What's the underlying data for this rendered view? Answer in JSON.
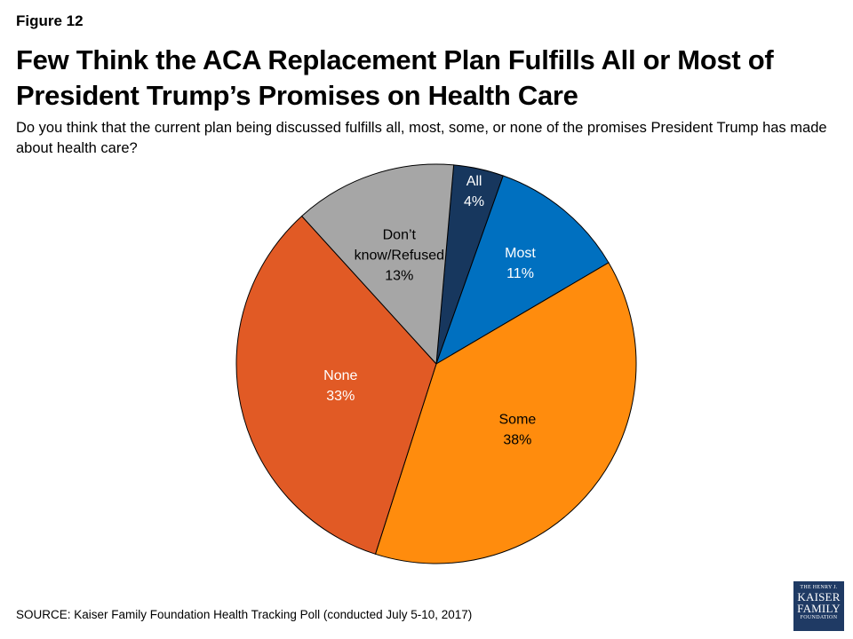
{
  "header": {
    "figure_label": "Figure 12",
    "title": "Few Think the ACA Replacement Plan Fulfills All or Most of President Trump’s Promises on Health Care",
    "subtitle": "Do you think that the current plan being discussed fulfills all, most, some, or none of the promises President Trump has made about health care?"
  },
  "chart_data": {
    "type": "pie",
    "title": "Few Think the ACA Replacement Plan Fulfills All or Most of President Trump’s Promises on Health Care",
    "slices": [
      {
        "label": "All",
        "value": 4,
        "value_label": "4%",
        "color": "#17375e",
        "label_color": "#ffffff"
      },
      {
        "label": "Most",
        "value": 11,
        "value_label": "11%",
        "color": "#0070c0",
        "label_color": "#ffffff"
      },
      {
        "label": "Some",
        "value": 38,
        "value_label": "38%",
        "color": "#ff8c0d",
        "label_color": "#000000"
      },
      {
        "label": "None",
        "value": 33,
        "value_label": "33%",
        "color": "#e15a25",
        "label_color": "#ffffff"
      },
      {
        "label": "Don’t know/Refused",
        "value": 13,
        "value_label": "13%",
        "color": "#a6a6a6",
        "label_color": "#000000"
      }
    ]
  },
  "footer": {
    "source": "SOURCE: Kaiser Family Foundation Health Tracking Poll (conducted July 5-10, 2017)",
    "logo": {
      "line1": "THE HENRY J.",
      "line2": "KAISER",
      "line3": "FAMILY",
      "line4": "FOUNDATION"
    }
  }
}
